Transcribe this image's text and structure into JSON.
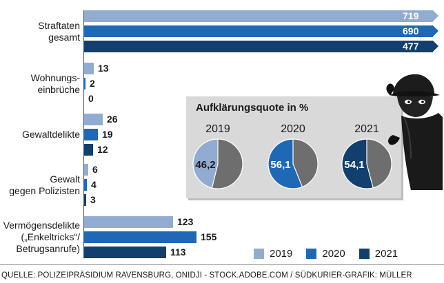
{
  "chart_data": [
    {
      "type": "bar",
      "orientation": "horizontal",
      "categories": [
        [
          "Straftaten",
          "gesamt"
        ],
        [
          "Wohnungs-",
          "einbrüche"
        ],
        [
          "Gewaltdelikte"
        ],
        [
          "Gewalt",
          "gegen Polizisten"
        ],
        [
          "Vermögensdelikte",
          "(„Enkeltricks“/",
          "Betrugsanrufe)"
        ]
      ],
      "series": [
        {
          "name": "2019",
          "values": [
            719,
            13,
            26,
            6,
            123
          ]
        },
        {
          "name": "2020",
          "values": [
            690,
            2,
            19,
            4,
            155
          ]
        },
        {
          "name": "2021",
          "values": [
            477,
            0,
            12,
            3,
            113
          ]
        }
      ],
      "value_labels": [
        [
          "719",
          "690",
          "477"
        ],
        [
          "13",
          "2",
          "0"
        ],
        [
          "26",
          "19",
          "12"
        ],
        [
          "6",
          "4",
          "3"
        ],
        [
          "123",
          "155",
          "113"
        ]
      ],
      "axis_break_on_first_category": true,
      "legend_position": "bottom-right",
      "grid": false
    },
    {
      "type": "pie",
      "title": "Aufklärungsquote in %",
      "charts": [
        {
          "year": "2019",
          "value": 46.2,
          "label": "46,2"
        },
        {
          "year": "2020",
          "value": 56.1,
          "label": "56,1"
        },
        {
          "year": "2021",
          "value": 54.1,
          "label": "54,1"
        }
      ],
      "remainder_color": "#6e6e6e"
    }
  ],
  "colors": {
    "2019": "#91acd0",
    "2020": "#1f68b5",
    "2021": "#123f6e",
    "pie_remainder": "#6e6e6e",
    "inset_background": "#d9d9d9"
  },
  "legend": [
    "2019",
    "2020",
    "2021"
  ],
  "source": "QUELLE: POLIZEIPRÄSIDIUM RAVENSBURG, ONIDJI - STOCK.ADOBE.COM / SÜDKURIER-GRAFIK: MÜLLER",
  "illustration": "burglar-peeking-icon"
}
